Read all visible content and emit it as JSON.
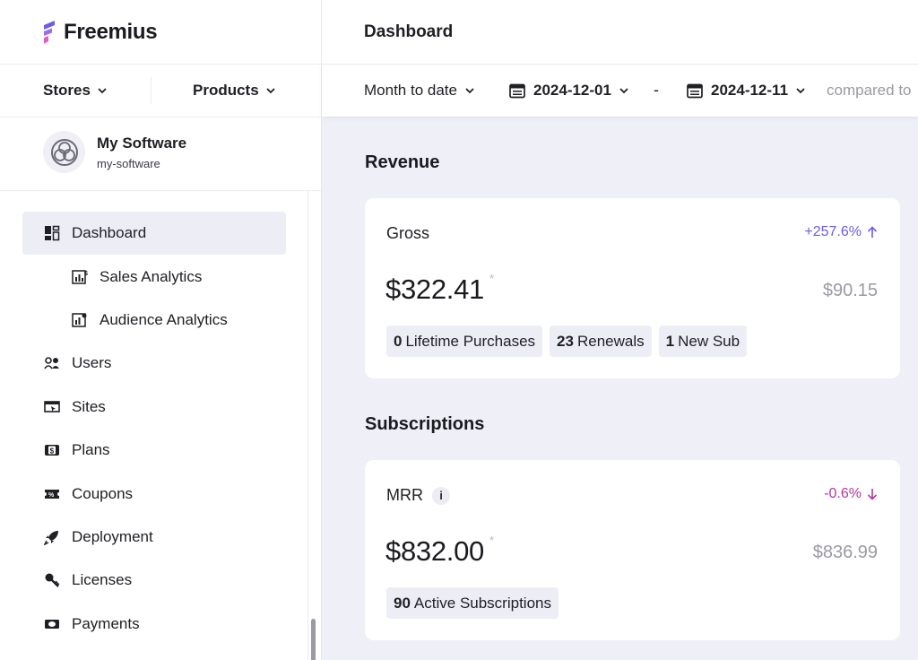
{
  "brand": {
    "name": "Freemius"
  },
  "selectors": {
    "stores": "Stores",
    "products": "Products"
  },
  "product": {
    "name": "My Software",
    "slug": "my-software"
  },
  "nav": {
    "dashboard": "Dashboard",
    "sales_analytics": "Sales Analytics",
    "audience_analytics": "Audience Analytics",
    "users": "Users",
    "sites": "Sites",
    "plans": "Plans",
    "coupons": "Coupons",
    "deployment": "Deployment",
    "licenses": "Licenses",
    "payments": "Payments"
  },
  "header": {
    "title": "Dashboard"
  },
  "filters": {
    "range": "Month to date",
    "start_date": "2024-12-01",
    "separator": "-",
    "end_date": "2024-12-11",
    "compared": "compared to"
  },
  "revenue": {
    "section_title": "Revenue",
    "card_label": "Gross",
    "delta": "+257.6%",
    "value": "$322.41",
    "footnote": "*",
    "previous": "$90.15",
    "chips": [
      {
        "count": "0",
        "label": "Lifetime Purchases"
      },
      {
        "count": "23",
        "label": "Renewals"
      },
      {
        "count": "1",
        "label": "New Sub"
      }
    ]
  },
  "subscriptions": {
    "section_title": "Subscriptions",
    "card_label": "MRR",
    "info": "i",
    "delta": "-0.6%",
    "value": "$832.00",
    "footnote": "*",
    "previous": "$836.99",
    "chips": [
      {
        "count": "90",
        "label": "Active Subscriptions"
      }
    ]
  },
  "colors": {
    "accent": "#6d5ce8",
    "negative": "#b3369e",
    "active_nav_bg": "#ededf6",
    "page_bg": "#efeff8"
  }
}
